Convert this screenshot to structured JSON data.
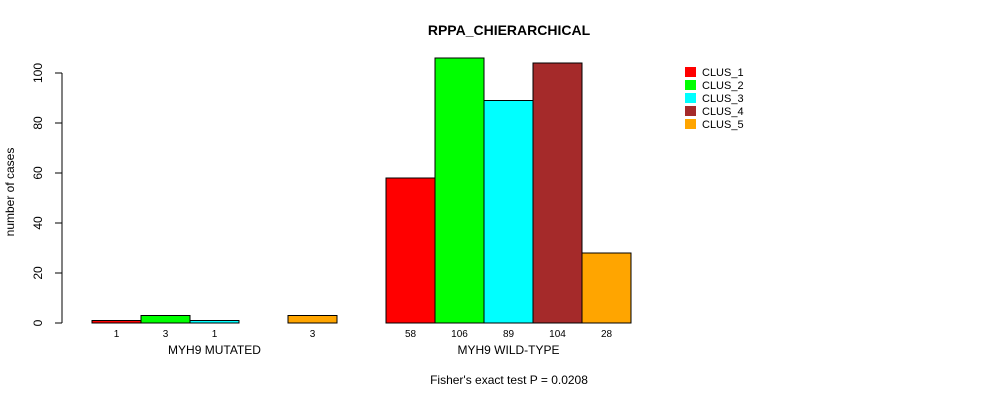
{
  "chart_data": {
    "type": "bar",
    "title": "RPPA_CHIERARCHICAL",
    "ylabel": "number of cases",
    "xlabel": "",
    "ylim": [
      0,
      100
    ],
    "yticks": [
      0,
      20,
      40,
      60,
      80,
      100
    ],
    "groups": [
      "MYH9 MUTATED",
      "MYH9 WILD-TYPE"
    ],
    "series": [
      {
        "name": "CLUS_1",
        "color": "#ff0000",
        "values": [
          1,
          58
        ]
      },
      {
        "name": "CLUS_2",
        "color": "#00ff00",
        "values": [
          3,
          106
        ]
      },
      {
        "name": "CLUS_3",
        "color": "#00ffff",
        "values": [
          1,
          89
        ]
      },
      {
        "name": "CLUS_4",
        "color": "#a52a2a",
        "values": [
          0,
          104
        ]
      },
      {
        "name": "CLUS_5",
        "color": "#ffa500",
        "values": [
          3,
          28
        ]
      }
    ],
    "count_labels": [
      [
        "1",
        "3",
        "1",
        "",
        "3"
      ],
      [
        "58",
        "106",
        "89",
        "104",
        "28"
      ]
    ],
    "legend_position": "top-right",
    "grid": false
  },
  "footer": {
    "test_text": "Fisher's exact test P = 0.0208"
  }
}
